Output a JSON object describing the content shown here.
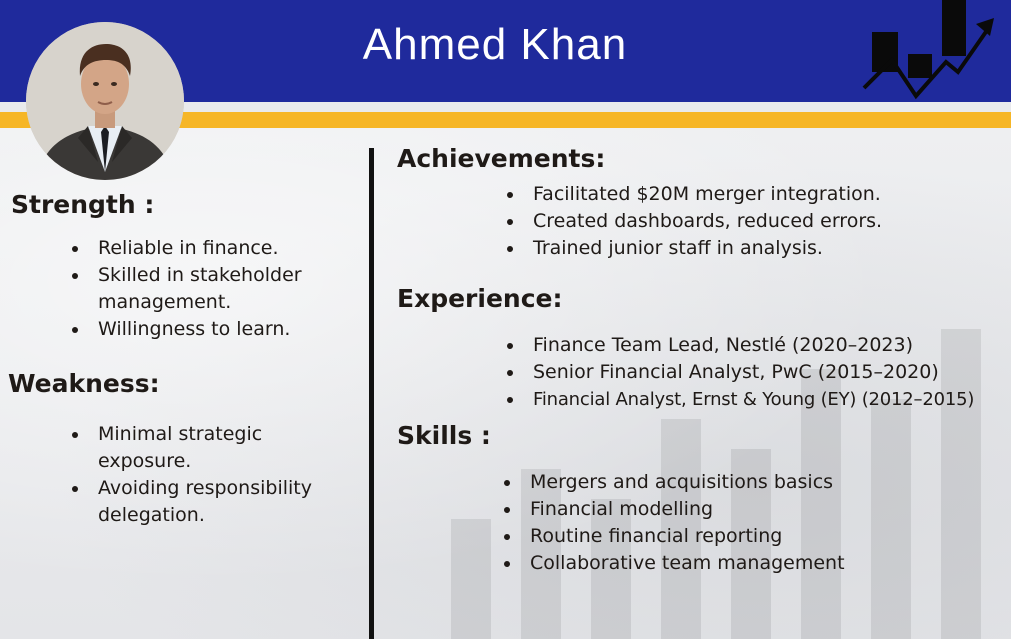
{
  "header": {
    "name": "Ahmed Khan",
    "avatar_icon": "person-portrait",
    "chart_icon": "growth-chart-icon",
    "colors": {
      "header_blue": "#1f2a9c",
      "accent_gold": "#f6b626"
    }
  },
  "strength": {
    "title": "Strength :",
    "items": [
      "Reliable in finance.",
      "Skilled in stakeholder management.",
      "Willingness to learn."
    ]
  },
  "weakness": {
    "title": "Weakness:",
    "items": [
      "Minimal strategic exposure.",
      "Avoiding responsibility delegation."
    ]
  },
  "achievements": {
    "title": "Achievements:",
    "items": [
      "Facilitated $20M merger integration.",
      "Created dashboards, reduced errors.",
      "Trained junior staff in analysis."
    ]
  },
  "experience": {
    "title": "Experience:",
    "items": [
      "Finance Team Lead, Nestlé (2020–2023)",
      "Senior Financial Analyst, PwC (2015–2020)",
      "Financial Analyst, Ernst & Young (EY) (2012–2015)"
    ]
  },
  "skills": {
    "title": "Skills :",
    "items": [
      "Mergers and acquisitions basics",
      "Financial modelling",
      "Routine financial reporting",
      "Collaborative team management"
    ]
  }
}
